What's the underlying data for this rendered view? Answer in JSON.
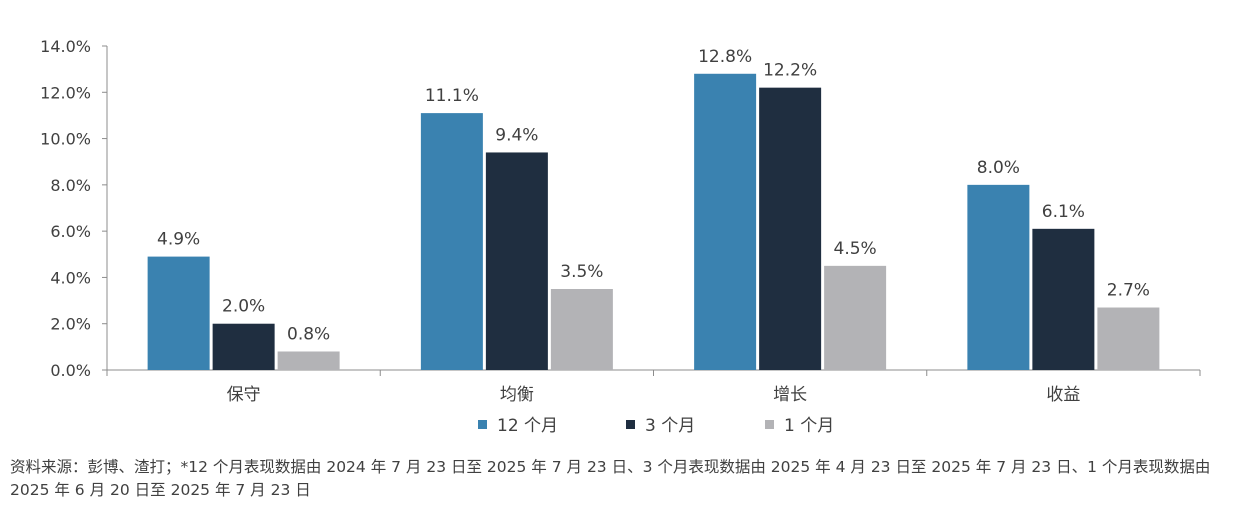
{
  "chart_data": {
    "type": "bar",
    "categories": [
      "保守",
      "均衡",
      "增长",
      "收益"
    ],
    "series": [
      {
        "name": "12 个月",
        "color": "#3a82b0",
        "values": [
          4.9,
          11.1,
          12.8,
          8.0
        ]
      },
      {
        "name": "3 个月",
        "color": "#1f2e40",
        "values": [
          2.0,
          9.4,
          12.2,
          6.1
        ]
      },
      {
        "name": "1 个月",
        "color": "#b3b3b6",
        "values": [
          0.8,
          3.5,
          4.5,
          2.7
        ]
      }
    ],
    "data_labels": [
      [
        "4.9%",
        "11.1%",
        "12.8%",
        "8.0%"
      ],
      [
        "2.0%",
        "9.4%",
        "12.2%",
        "6.1%"
      ],
      [
        "0.8%",
        "3.5%",
        "4.5%",
        "2.7%"
      ]
    ],
    "ylim": [
      0,
      14
    ],
    "yticks": [
      0,
      2,
      4,
      6,
      8,
      10,
      12,
      14
    ],
    "ytick_labels": [
      "0.0%",
      "2.0%",
      "4.0%",
      "6.0%",
      "8.0%",
      "10.0%",
      "12.0%",
      "14.0%"
    ],
    "legend_position": "bottom",
    "grid": false
  },
  "source_note": "资料来源：彭博、渣打；*12 个月表现数据由 2024 年 7 月 23 日至 2025 年 7 月 23 日、3 个月表现数据由 2025 年 4 月 23 日至 2025 年 7 月 23 日、1 个月表现数据由 2025 年 6 月 20 日至 2025 年 7 月 23 日"
}
